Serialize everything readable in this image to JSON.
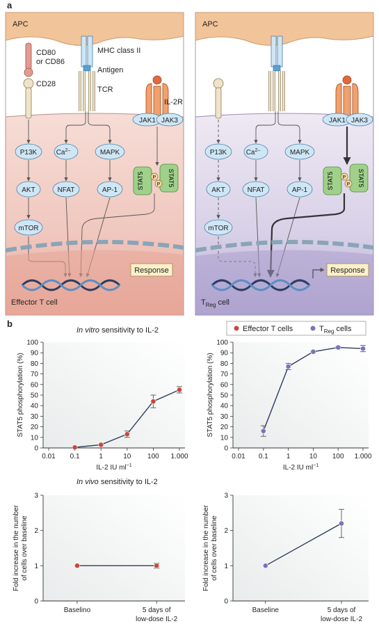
{
  "figure": {
    "panel_a_letter": "a",
    "panel_b_letter": "b"
  },
  "diagram": {
    "apc_label": "APC",
    "cd80_line1": "CD80",
    "cd80_line2": "or CD86",
    "cd28": "CD28",
    "mhc": "MHC class II",
    "antigen": "Antigen",
    "tcr": "TCR",
    "il2r": "IL-2R",
    "jak1": "JAK1",
    "jak3": "JAK3",
    "pi3k": "P13K",
    "ca": "Ca",
    "ca_sup": "2–",
    "mapk": "MAPK",
    "akt": "AKT",
    "nfat": "NFAT",
    "ap1": "AP-1",
    "mtor": "mTOR",
    "stat5": "STAT5",
    "p": "P",
    "response": "Response",
    "left_cell": "Effector T cell",
    "right_cell_prefix": "T",
    "right_cell_sub": "Reg",
    "right_cell_suffix": " cell"
  },
  "charts_text": {
    "in_vitro_title": "In vitro",
    "in_vitro_rest": " sensitivity to IL-2",
    "in_vivo_title": "In vivo",
    "in_vivo_rest": " sensitivity to IL-2",
    "legend_effector": "Effector T cells",
    "legend_treg_prefix": "T",
    "legend_treg_sub": "Reg",
    "legend_treg_suffix": " cells",
    "ylabel_top": "STAT5 phosphorylation (%)",
    "xlabel_top": "IL-2 IU ml",
    "xlabel_sup": "−1",
    "ylabel_bottom_1": "Fold increase in the number",
    "ylabel_bottom_2": "of cells over baseline"
  },
  "colors": {
    "effector": "#c9473d",
    "treg": "#7b72bb",
    "apc": "#f2c49a",
    "left_cell": "#f3d3cc",
    "right_cell": "#ddd6ea",
    "node": "#cfe6f5",
    "stat5": "#9fd18b"
  },
  "chart_data": [
    {
      "type": "line",
      "panel": "in vitro effector",
      "x": [
        "0.1",
        "1",
        "10",
        "100",
        "1.000"
      ],
      "x_numeric": [
        0.1,
        1,
        10,
        100,
        1000
      ],
      "x_ticks": [
        "0.01",
        "0.1",
        "1",
        "10",
        "100",
        "1.000"
      ],
      "xlog": true,
      "xlim": [
        0.01,
        1000
      ],
      "ylim": [
        0,
        100
      ],
      "y_ticks": [
        "0",
        "10",
        "20",
        "30",
        "40",
        "50",
        "60",
        "70",
        "80",
        "90",
        "100"
      ],
      "series": [
        {
          "name": "Effector T cells",
          "values": [
            0.5,
            3,
            13,
            44,
            55
          ],
          "err": [
            0.5,
            0.5,
            3,
            6,
            3
          ]
        }
      ]
    },
    {
      "type": "line",
      "panel": "in vitro treg",
      "x": [
        "0.1",
        "1",
        "10",
        "100",
        "1.000"
      ],
      "x_numeric": [
        0.1,
        1,
        10,
        100,
        1000
      ],
      "x_ticks": [
        "0.01",
        "0.1",
        "1",
        "10",
        "100",
        "1.000"
      ],
      "xlog": true,
      "xlim": [
        0.01,
        1000
      ],
      "ylim": [
        0,
        100
      ],
      "y_ticks": [
        "0",
        "10",
        "20",
        "30",
        "40",
        "50",
        "60",
        "70",
        "80",
        "90",
        "100"
      ],
      "series": [
        {
          "name": "TReg cells",
          "values": [
            16,
            77,
            91,
            95,
            94
          ],
          "err": [
            5,
            3,
            1,
            1,
            3
          ]
        }
      ]
    },
    {
      "type": "line",
      "panel": "in vivo effector",
      "categories": [
        "Baselino",
        "5 days of low-dose IL-2"
      ],
      "category_lines": [
        [
          "Baselino"
        ],
        [
          "5 days of",
          "low-dose IL-2"
        ]
      ],
      "ylim": [
        0,
        3
      ],
      "y_ticks": [
        "0",
        "1",
        "2",
        "3"
      ],
      "series": [
        {
          "name": "Effector T cells",
          "values": [
            1.0,
            1.0
          ],
          "err": [
            0,
            0.07
          ]
        }
      ]
    },
    {
      "type": "line",
      "panel": "in vivo treg",
      "categories": [
        "Baseline",
        "5 days of low-dose IL-2"
      ],
      "category_lines": [
        [
          "Baseline"
        ],
        [
          "5 days of",
          "low-dose IL-2"
        ]
      ],
      "ylim": [
        0,
        3
      ],
      "y_ticks": [
        "0",
        "1",
        "2",
        "3"
      ],
      "series": [
        {
          "name": "TReg cells",
          "values": [
            1.0,
            2.2
          ],
          "err": [
            0,
            0.4
          ]
        }
      ]
    }
  ]
}
